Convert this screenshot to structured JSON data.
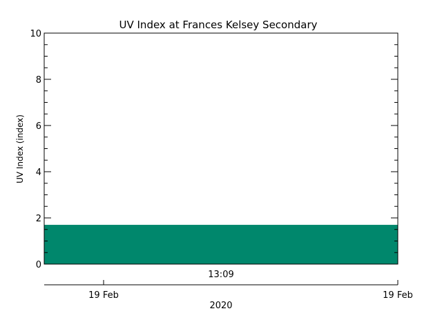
{
  "chart_data": {
    "type": "area",
    "title": "UV Index at Frances Kelsey Secondary",
    "ylabel": "UV Index (index)",
    "ylim": [
      0,
      10
    ],
    "y_major_ticks": [
      0,
      2,
      4,
      6,
      8,
      10
    ],
    "y_minor_step": 0.5,
    "x_time_label": "13:09",
    "x_date_labels": [
      "19 Feb",
      "19 Feb"
    ],
    "x_year_label": "2020",
    "fill_color": "#00876c",
    "series": [
      {
        "values": [
          1.7
        ]
      }
    ]
  }
}
